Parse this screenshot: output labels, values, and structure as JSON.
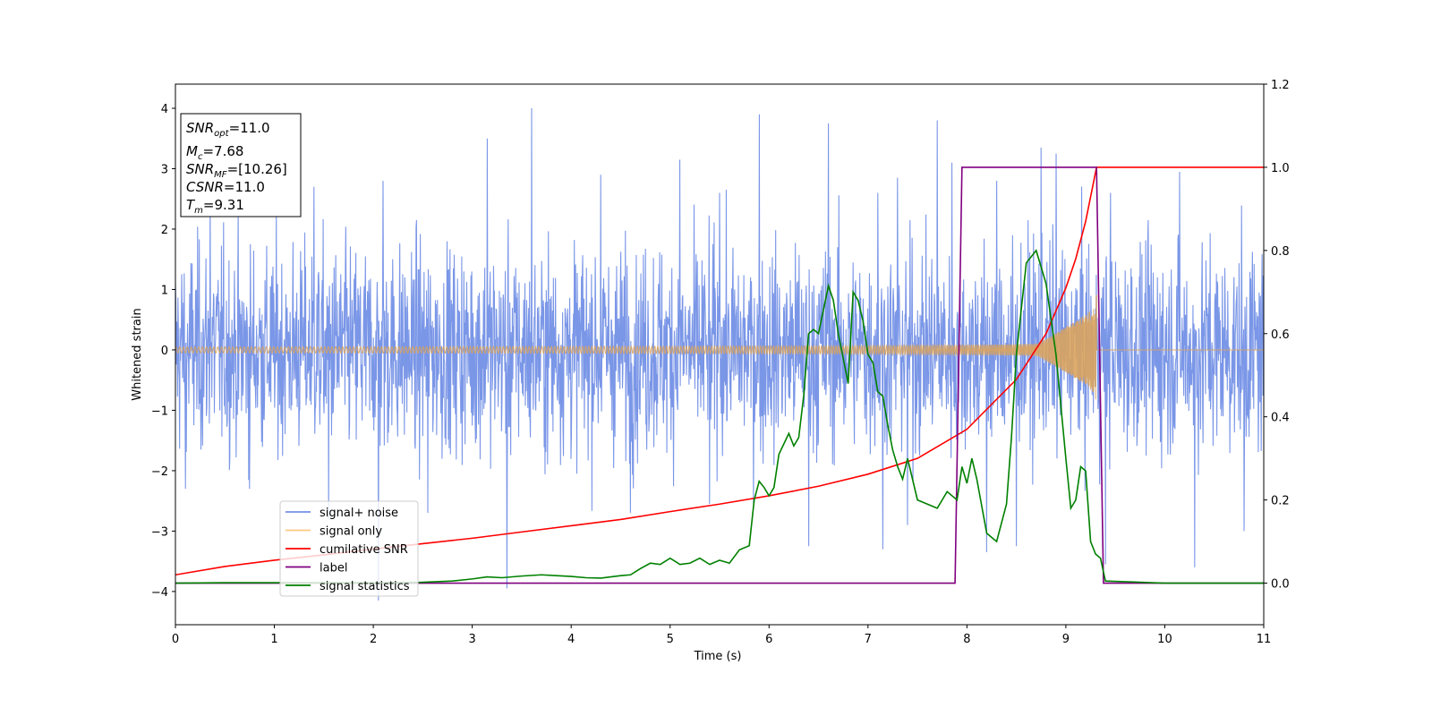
{
  "chart_data": {
    "type": "line",
    "xlabel": "Time (s)",
    "ylabel": "Whitened strain",
    "xlim": [
      0,
      11
    ],
    "ylim_left": [
      -4.55,
      4.4
    ],
    "ylim_right": [
      -0.1,
      1.2
    ],
    "x_ticks": [
      "0",
      "1",
      "2",
      "3",
      "4",
      "5",
      "6",
      "7",
      "8",
      "9",
      "10",
      "11"
    ],
    "y_ticks_left": [
      "−4",
      "−3",
      "−2",
      "−1",
      "0",
      "1",
      "2",
      "3",
      "4"
    ],
    "y_ticks_right": [
      "0.0",
      "0.2",
      "0.4",
      "0.6",
      "0.8",
      "1.0",
      "1.2"
    ],
    "grid": false,
    "legend_position": "lower-left",
    "annotation": {
      "lines": [
        {
          "var": "SNR",
          "sub": "opt",
          "value": "=11.0"
        },
        {
          "var": "M",
          "sub": "c",
          "value": "=7.68"
        },
        {
          "var": "SNR",
          "sub": "MF",
          "value": "=[10.26]"
        },
        {
          "var": "CSNR",
          "sub": "",
          "value": "=11.0"
        },
        {
          "var": "T",
          "sub": "m",
          "value": "=9.31"
        }
      ]
    },
    "series": [
      {
        "name": "signal+ noise",
        "axis": "left",
        "color": "#7390e6",
        "description": "whitened gaussian noise plus chirp, amplitude roughly ±1.5 with spikes to ±4",
        "spikes_up": [
          [
            0.35,
            2.6
          ],
          [
            0.75,
            2.5
          ],
          [
            1.4,
            2.7
          ],
          [
            2.1,
            2.8
          ],
          [
            3.15,
            3.5
          ],
          [
            3.6,
            4.0
          ],
          [
            4.3,
            2.9
          ],
          [
            5.1,
            3.15
          ],
          [
            5.5,
            2.6
          ],
          [
            5.9,
            3.9
          ],
          [
            6.6,
            3.75
          ],
          [
            7.1,
            2.6
          ],
          [
            7.3,
            2.85
          ],
          [
            7.7,
            3.8
          ],
          [
            7.85,
            3.1
          ],
          [
            8.3,
            2.8
          ],
          [
            8.75,
            3.35
          ],
          [
            8.9,
            3.25
          ],
          [
            9.45,
            2.6
          ],
          [
            10.15,
            2.95
          ],
          [
            10.8,
            3.0
          ]
        ],
        "spikes_down": [
          [
            0.1,
            -2.3
          ],
          [
            0.75,
            -2.3
          ],
          [
            1.55,
            -2.8
          ],
          [
            2.05,
            -4.15
          ],
          [
            2.55,
            -2.7
          ],
          [
            3.35,
            -3.95
          ],
          [
            4.6,
            -2.7
          ],
          [
            5.4,
            -2.55
          ],
          [
            6.4,
            -3.25
          ],
          [
            7.15,
            -3.3
          ],
          [
            7.4,
            -2.9
          ],
          [
            8.2,
            -3.35
          ],
          [
            8.5,
            -3.25
          ],
          [
            9.4,
            -3.55
          ],
          [
            10.3,
            -3.6
          ],
          [
            10.8,
            -3.0
          ]
        ]
      },
      {
        "name": "signal only",
        "axis": "left",
        "color": "#d9a35e",
        "chirp": {
          "t_merge": 9.31,
          "amp_start": 0.05,
          "amp_end": 1.0
        }
      },
      {
        "name": "cumilative SNR",
        "axis": "right",
        "color": "#ff0000",
        "x": [
          0,
          0.5,
          1,
          1.5,
          2,
          2.5,
          3,
          3.5,
          4,
          4.5,
          5,
          5.5,
          6,
          6.5,
          7,
          7.5,
          8,
          8.5,
          8.8,
          9.0,
          9.1,
          9.2,
          9.31,
          11
        ],
        "values": [
          0.02,
          0.04,
          0.055,
          0.068,
          0.082,
          0.095,
          0.108,
          0.123,
          0.138,
          0.153,
          0.172,
          0.19,
          0.21,
          0.233,
          0.262,
          0.3,
          0.37,
          0.49,
          0.6,
          0.71,
          0.78,
          0.87,
          1.0,
          1.0
        ]
      },
      {
        "name": "label",
        "axis": "right",
        "color": "#800080",
        "x": [
          0,
          7.88,
          7.95,
          9.31,
          9.38,
          11
        ],
        "values": [
          0,
          0,
          1,
          1,
          0,
          0
        ]
      },
      {
        "name": "signal statistics",
        "axis": "right",
        "color": "#008000",
        "x": [
          0,
          0.5,
          1,
          1.5,
          2,
          2.5,
          2.8,
          3.0,
          3.15,
          3.3,
          3.5,
          3.7,
          3.85,
          4.0,
          4.15,
          4.3,
          4.5,
          4.6,
          4.7,
          4.8,
          4.9,
          5.0,
          5.1,
          5.2,
          5.3,
          5.4,
          5.5,
          5.6,
          5.7,
          5.8,
          5.85,
          5.9,
          5.95,
          6.0,
          6.05,
          6.1,
          6.2,
          6.25,
          6.3,
          6.35,
          6.4,
          6.45,
          6.5,
          6.6,
          6.65,
          6.7,
          6.8,
          6.85,
          6.9,
          6.95,
          7.0,
          7.05,
          7.1,
          7.15,
          7.2,
          7.25,
          7.3,
          7.35,
          7.4,
          7.5,
          7.6,
          7.7,
          7.8,
          7.9,
          7.95,
          8.0,
          8.05,
          8.1,
          8.2,
          8.3,
          8.4,
          8.45,
          8.5,
          8.6,
          8.7,
          8.8,
          8.9,
          9.0,
          9.05,
          9.1,
          9.15,
          9.2,
          9.25,
          9.3,
          9.35,
          9.4,
          10,
          11
        ],
        "values": [
          0,
          0.001,
          0.001,
          0.001,
          0.001,
          0.002,
          0.005,
          0.01,
          0.015,
          0.013,
          0.017,
          0.02,
          0.018,
          0.016,
          0.013,
          0.012,
          0.018,
          0.02,
          0.035,
          0.048,
          0.045,
          0.06,
          0.045,
          0.048,
          0.06,
          0.045,
          0.055,
          0.048,
          0.08,
          0.09,
          0.2,
          0.245,
          0.23,
          0.21,
          0.23,
          0.31,
          0.36,
          0.33,
          0.35,
          0.45,
          0.6,
          0.61,
          0.6,
          0.715,
          0.68,
          0.6,
          0.48,
          0.7,
          0.68,
          0.63,
          0.55,
          0.53,
          0.46,
          0.45,
          0.38,
          0.32,
          0.28,
          0.25,
          0.3,
          0.2,
          0.19,
          0.18,
          0.22,
          0.2,
          0.28,
          0.24,
          0.3,
          0.25,
          0.12,
          0.1,
          0.19,
          0.35,
          0.55,
          0.77,
          0.8,
          0.72,
          0.55,
          0.3,
          0.18,
          0.2,
          0.28,
          0.27,
          0.1,
          0.07,
          0.06,
          0.005,
          0,
          0
        ]
      }
    ]
  }
}
